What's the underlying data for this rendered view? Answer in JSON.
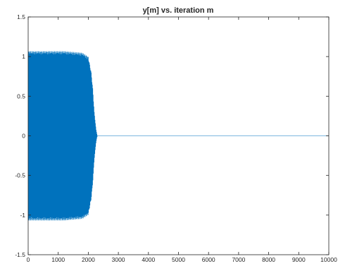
{
  "chart_data": {
    "type": "line",
    "title": "y[m] vs. iteration m",
    "xlabel": "",
    "ylabel": "",
    "xlim": [
      0,
      10000
    ],
    "ylim": [
      -1.5,
      1.5
    ],
    "x_ticks": [
      0,
      1000,
      2000,
      3000,
      4000,
      5000,
      6000,
      7000,
      8000,
      9000,
      10000
    ],
    "x_tick_labels": [
      "0",
      "1000",
      "2000",
      "3000",
      "4000",
      "5000",
      "6000",
      "7000",
      "8000",
      "9000",
      "10000"
    ],
    "y_ticks": [
      -1.5,
      -1,
      -0.5,
      0,
      0.5,
      1,
      1.5
    ],
    "y_tick_labels": [
      "-1.5",
      "-1",
      "-0.5",
      "0",
      "0.5",
      "1",
      "1.5"
    ],
    "grid": false,
    "legend": "none",
    "series": [
      {
        "color": "#0072bd",
        "envelope": [
          {
            "x": 0,
            "amplitude": 1.07
          },
          {
            "x": 1200,
            "amplitude": 1.07
          },
          {
            "x": 1800,
            "amplitude": 1.05
          },
          {
            "x": 2000,
            "amplitude": 1.0
          },
          {
            "x": 2100,
            "amplitude": 0.8
          },
          {
            "x": 2150,
            "amplitude": 0.6
          },
          {
            "x": 2200,
            "amplitude": 0.3
          },
          {
            "x": 2260,
            "amplitude": 0.08
          },
          {
            "x": 2300,
            "amplitude": 0.0
          },
          {
            "x": 10000,
            "amplitude": 0.0
          }
        ]
      }
    ]
  }
}
